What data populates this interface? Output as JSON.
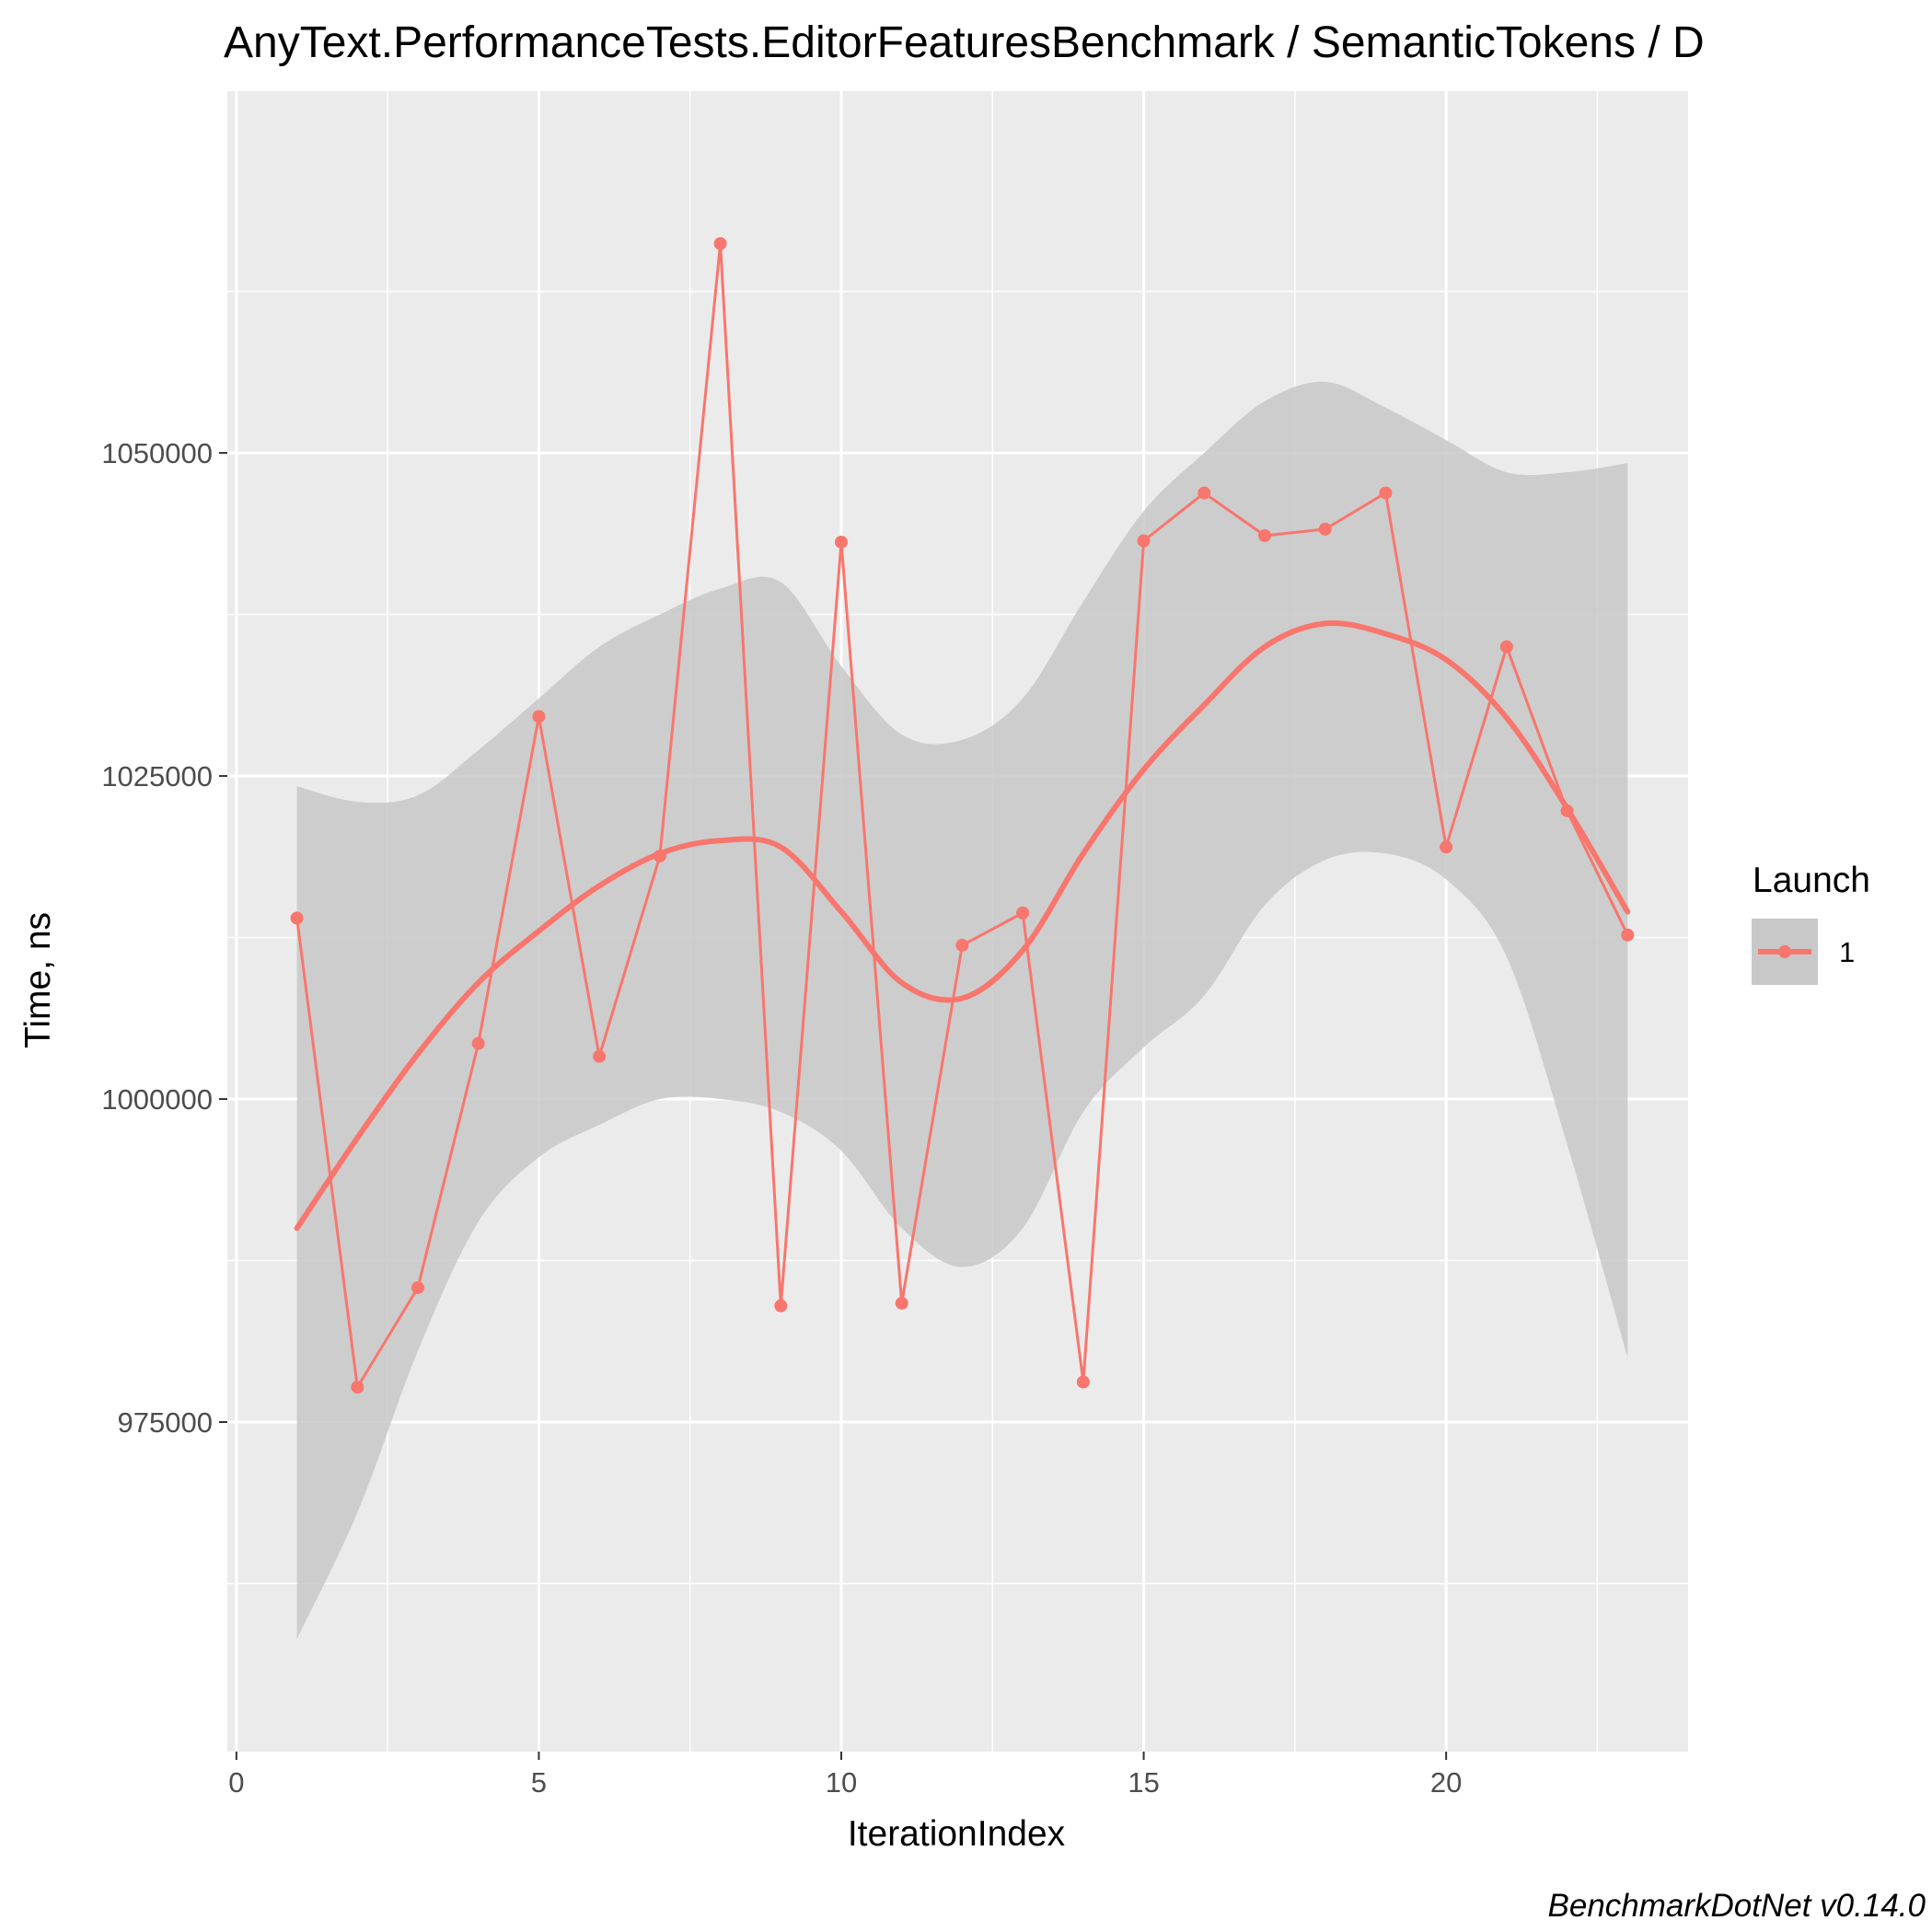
{
  "chart_data": {
    "type": "line",
    "title": "AnyText.PerformanceTests.EditorFeaturesBenchmark / SemanticTokens / D",
    "xlabel": "IterationIndex",
    "ylabel": "Time, ns",
    "caption": "BenchmarkDotNet v0.14.0",
    "xlim": [
      -0.15,
      24
    ],
    "ylim": [
      949500,
      1078000
    ],
    "x_ticks": [
      0,
      5,
      10,
      15,
      20
    ],
    "x_minor_ticks": [
      2.5,
      7.5,
      12.5,
      17.5,
      22.5
    ],
    "y_ticks": [
      975000,
      1000000,
      1025000,
      1050000
    ],
    "y_tick_labels": [
      "975000",
      "1000000",
      "1025000",
      "1050000"
    ],
    "y_minor_ticks": [
      962500,
      987500,
      1012500,
      1037500,
      1062500
    ],
    "grid": true,
    "legend_position": "right",
    "legend": {
      "title": "Launch",
      "entries": [
        "1"
      ]
    },
    "colors": {
      "series": "#f8766d",
      "ribbon": "#c8c8c8",
      "panel": "#ebebeb",
      "grid": "#ffffff",
      "axis_text": "#4d4d4d"
    },
    "series": [
      {
        "name": "1",
        "x": [
          1,
          2,
          3,
          4,
          5,
          6,
          7,
          8,
          9,
          10,
          11,
          12,
          13,
          14,
          15,
          16,
          17,
          18,
          19,
          20,
          21,
          22,
          23
        ],
        "values": [
          1014000,
          977700,
          985400,
          1004300,
          1029600,
          1003300,
          1018800,
          1066200,
          984000,
          1043100,
          984200,
          1011900,
          1014400,
          978100,
          1043200,
          1046900,
          1043600,
          1044100,
          1046900,
          1019500,
          1035000,
          1022300,
          1012700
        ]
      }
    ],
    "smooth": {
      "x": [
        1,
        2,
        3,
        4,
        5,
        6,
        7,
        8,
        9,
        10,
        11,
        12,
        13,
        14,
        15,
        16,
        17,
        18,
        19,
        20,
        21,
        22,
        23
      ],
      "values": [
        990000,
        997000,
        1003500,
        1009000,
        1013000,
        1016500,
        1019000,
        1020000,
        1019500,
        1014500,
        1009000,
        1007800,
        1011500,
        1019000,
        1025500,
        1030500,
        1035000,
        1036800,
        1036000,
        1034000,
        1029500,
        1022500,
        1014500
      ],
      "lower": [
        958200,
        968000,
        980500,
        990500,
        995500,
        998000,
        1000000,
        1000000,
        999000,
        996000,
        990000,
        987000,
        990000,
        999000,
        1004000,
        1008000,
        1015000,
        1018500,
        1019000,
        1017000,
        1011000,
        996500,
        980000
      ],
      "upper": [
        1024200,
        1023000,
        1023500,
        1027000,
        1031000,
        1035000,
        1037500,
        1039500,
        1040000,
        1033500,
        1028200,
        1027800,
        1031000,
        1038500,
        1045500,
        1050000,
        1054000,
        1055500,
        1053500,
        1051000,
        1048500,
        1048500,
        1049200
      ]
    }
  }
}
